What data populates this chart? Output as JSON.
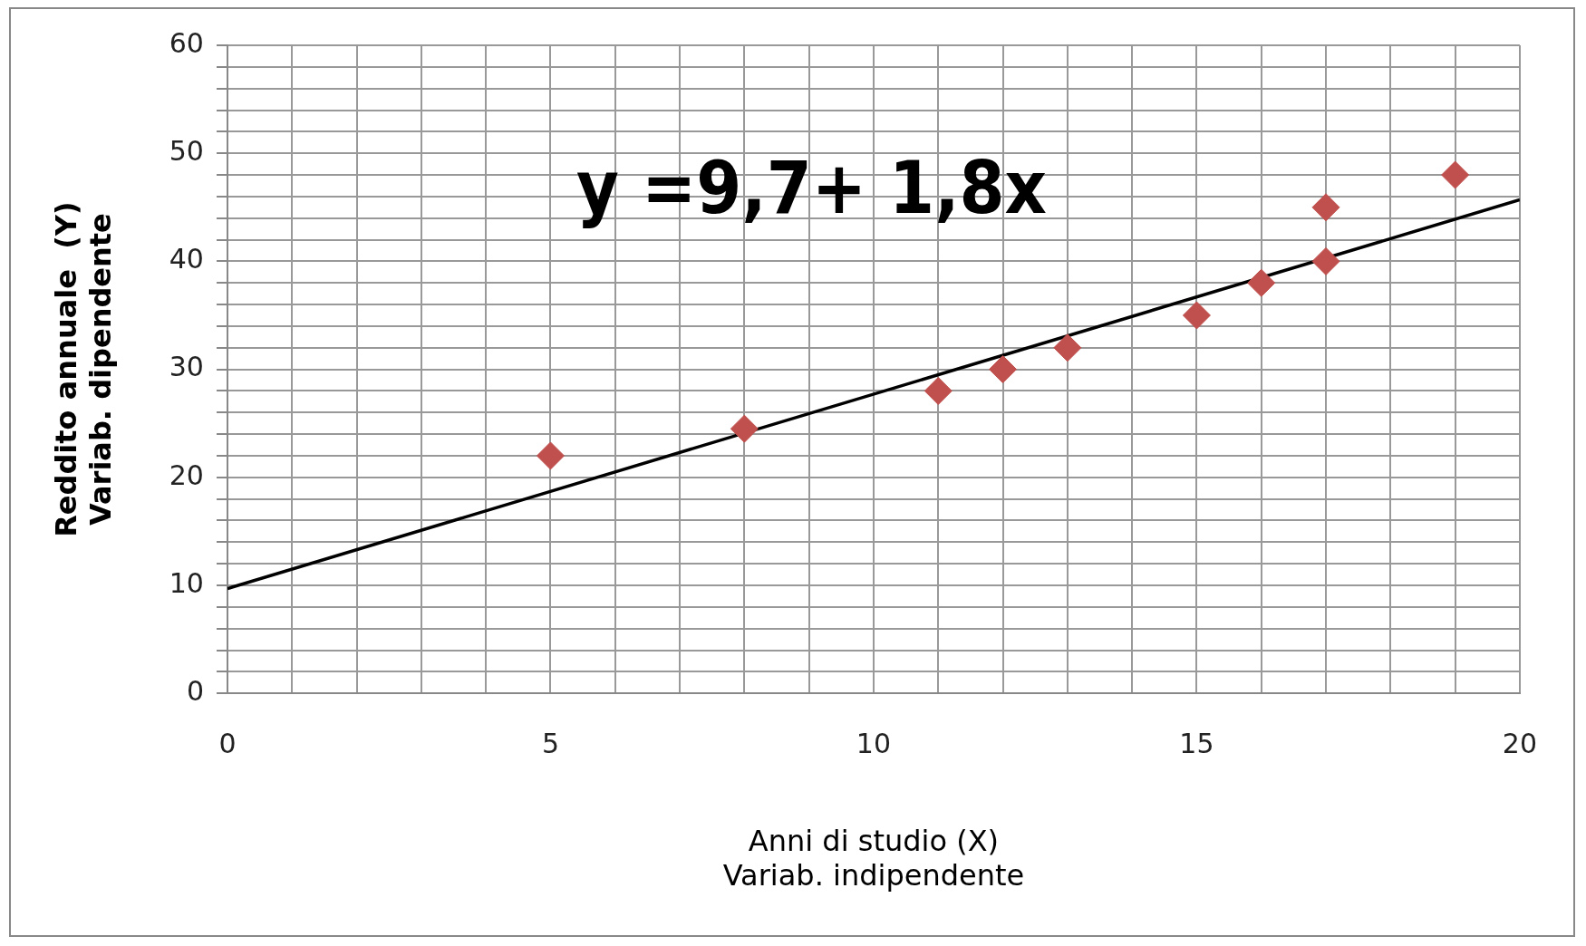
{
  "chart_data": {
    "type": "scatter",
    "xlabel": "Anni di studio (X)\nVariab. indipendente",
    "ylabel": "Reddito annuale  (Y)\nVariab. dipendente",
    "x": [
      5,
      8,
      11,
      12,
      13,
      15,
      16,
      17,
      17,
      19
    ],
    "series": [
      {
        "color": "#c0504d",
        "values": [
          22,
          24.5,
          28,
          30,
          32,
          35,
          38,
          45,
          40,
          48
        ],
        "marker": "diamond"
      },
      {
        "type": "line",
        "color": "#000000",
        "x": [
          0,
          20
        ],
        "values": [
          9.7,
          45.7
        ],
        "marker": "none"
      }
    ],
    "xlim": [
      0,
      20
    ],
    "ylim": [
      0,
      60
    ],
    "xticks": [
      0,
      {
        "value": 1,
        "label": null
      },
      {
        "value": 2,
        "label": null
      },
      {
        "value": 3,
        "label": null
      },
      {
        "value": 4,
        "label": null
      },
      5,
      {
        "value": 6,
        "label": null
      },
      {
        "value": 7,
        "label": null
      },
      {
        "value": 8,
        "label": null
      },
      {
        "value": 9,
        "label": null
      },
      10,
      {
        "value": 11,
        "label": null
      },
      {
        "value": 12,
        "label": null
      },
      {
        "value": 13,
        "label": null
      },
      {
        "value": 14,
        "label": null
      },
      15,
      {
        "value": 16,
        "label": null
      },
      {
        "value": 17,
        "label": null
      },
      {
        "value": 18,
        "label": null
      },
      {
        "value": 19,
        "label": null
      },
      20
    ],
    "yticks": [
      0,
      {
        "value": 2,
        "label": null
      },
      {
        "value": 4,
        "label": null
      },
      {
        "value": 6,
        "label": null
      },
      {
        "value": 8,
        "label": null
      },
      10,
      {
        "value": 12,
        "label": null
      },
      {
        "value": 14,
        "label": null
      },
      {
        "value": 16,
        "label": null
      },
      {
        "value": 18,
        "label": null
      },
      20,
      {
        "value": 22,
        "label": null
      },
      {
        "value": 24,
        "label": null
      },
      {
        "value": 26,
        "label": null
      },
      {
        "value": 28,
        "label": null
      },
      30,
      {
        "value": 32,
        "label": null
      },
      {
        "value": 34,
        "label": null
      },
      {
        "value": 36,
        "label": null
      },
      {
        "value": 38,
        "label": null
      },
      40,
      {
        "value": 42,
        "label": null
      },
      {
        "value": 44,
        "label": null
      },
      {
        "value": 46,
        "label": null
      },
      {
        "value": 48,
        "label": null
      },
      50,
      {
        "value": 52,
        "label": null
      },
      {
        "value": 54,
        "label": null
      },
      {
        "value": 56,
        "label": null
      },
      {
        "value": 58,
        "label": null
      },
      60
    ],
    "grid": true,
    "legend": false,
    "annotations": [
      "y =9,7+ 1,8x"
    ]
  }
}
